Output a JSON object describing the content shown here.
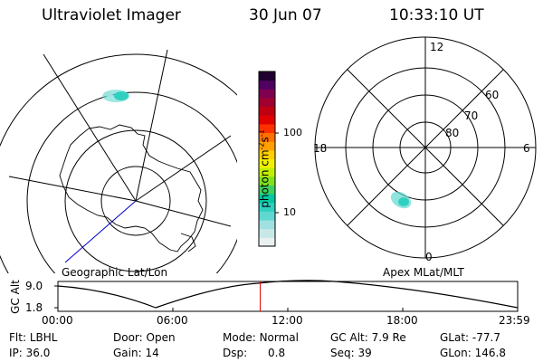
{
  "header": {
    "instrument": "Ultraviolet Imager",
    "date": "30 Jun 07",
    "time": "10:33:10 UT"
  },
  "left_panel": {
    "caption": "Geographic Lat/Lon"
  },
  "right_panel": {
    "caption": "Apex MLat/MLT",
    "mlt_labels": [
      "12",
      "18",
      "6",
      "0"
    ],
    "lat_labels": [
      "60",
      "70",
      "80"
    ]
  },
  "colorbar": {
    "label": "photon cm⁻²s⁻¹",
    "label_main": "photon cm",
    "label_sup1": "-2",
    "label_mid": "s",
    "label_sup2": "-1",
    "ticks": [
      "100",
      "10"
    ],
    "scale": "log",
    "colors": [
      "#e8f0f0",
      "#c8e8e8",
      "#a0e0e0",
      "#60d8d0",
      "#30d0c0",
      "#00c8a0",
      "#40d060",
      "#80e020",
      "#c0f000",
      "#f0f000",
      "#ffd000",
      "#ffa000",
      "#ff7000",
      "#ff3000",
      "#e00000",
      "#c00010",
      "#a00030",
      "#800050",
      "#500060",
      "#200030"
    ]
  },
  "timeline": {
    "ylabel": "GC Alt",
    "ymax": "9.0",
    "ymin": "1.8",
    "xticks": [
      "00:00",
      "06:00",
      "12:00",
      "18:00",
      "23:59"
    ],
    "current_time_fraction": 0.44
  },
  "footer": {
    "row1": [
      {
        "label": "Flt:",
        "value": "LBHL"
      },
      {
        "label": "Door:",
        "value": "Open"
      },
      {
        "label": "Mode:",
        "value": "Normal"
      },
      {
        "label": "GC Alt:",
        "value": "7.9 Re"
      },
      {
        "label": "GLat:",
        "value": "-77.7"
      }
    ],
    "row2": [
      {
        "label": "IP:",
        "value": "36.0"
      },
      {
        "label": "Gain:",
        "value": "14"
      },
      {
        "label": "Dsp:",
        "value": "0.8"
      },
      {
        "label": "Seq:",
        "value": "39"
      },
      {
        "label": "GLon:",
        "value": "146.8"
      }
    ]
  }
}
